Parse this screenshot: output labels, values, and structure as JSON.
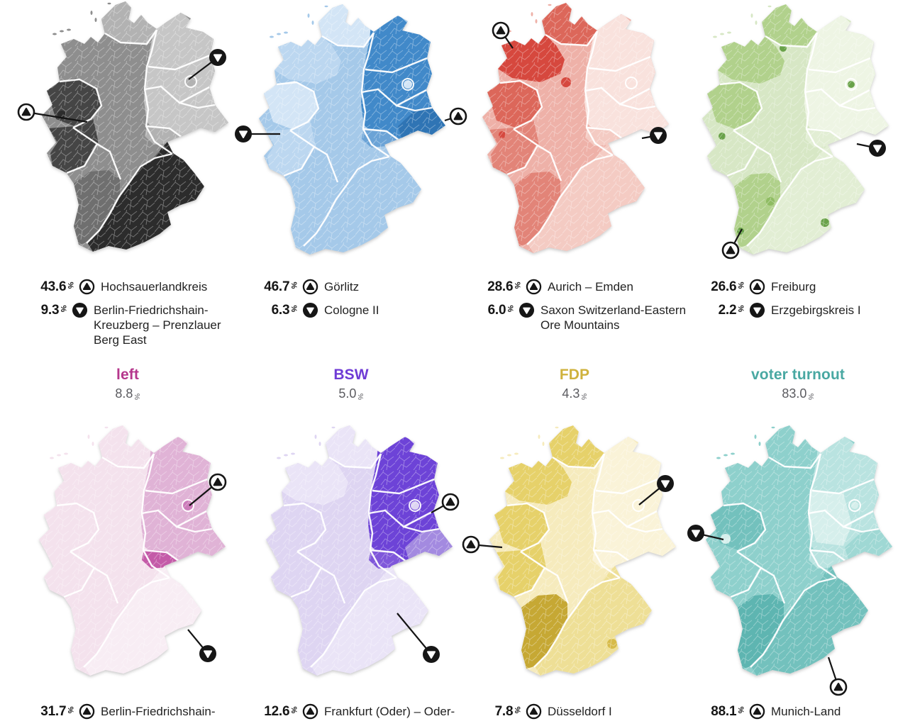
{
  "page": {
    "background": "#ffffff"
  },
  "unit": "%",
  "legend_icons": {
    "max": "triangle-up-in-circle",
    "min": "triangle-down-in-circle"
  },
  "chart_data": {
    "type": "heatmap",
    "subtype": "choropleth-small-multiples",
    "region": "Germany constituencies",
    "maps": [
      {
        "series": "map-grey",
        "max": {
          "value": 43.6,
          "district": "Hochsauerlandkreis"
        },
        "min": {
          "value": 9.3,
          "district": "Berlin-Friedrichshain-Kreuzberg – Prenzlauer Berg East"
        }
      },
      {
        "series": "map-blue",
        "max": {
          "value": 46.7,
          "district": "Görlitz"
        },
        "min": {
          "value": 6.3,
          "district": "Cologne II"
        }
      },
      {
        "series": "map-red",
        "max": {
          "value": 28.6,
          "district": "Aurich – Emden"
        },
        "min": {
          "value": 6.0,
          "district": "Saxon Switzerland-Eastern Ore Mountains"
        }
      },
      {
        "series": "map-green",
        "max": {
          "value": 26.6,
          "district": "Freiburg"
        },
        "min": {
          "value": 2.2,
          "district": "Erzgebirgskreis I"
        }
      },
      {
        "series": "left",
        "total": 8.8,
        "max": {
          "value": 31.7,
          "district": "Berlin-Friedrichshain-"
        }
      },
      {
        "series": "BSW",
        "total": 5.0,
        "max": {
          "value": 12.6,
          "district": "Frankfurt (Oder) – Oder-"
        }
      },
      {
        "series": "FDP",
        "total": 4.3,
        "max": {
          "value": 7.8,
          "district": "Düsseldorf I"
        }
      },
      {
        "series": "voter turnout",
        "total": 83.0,
        "max": {
          "value": 88.1,
          "district": "Munich-Land"
        }
      }
    ]
  },
  "maps": [
    {
      "name": "map-grey",
      "palette": [
        "#c6c6c6",
        "#b2b2b2",
        "#8e8e8e",
        "#6f6f6f",
        "#454545",
        "#2c2c2c"
      ],
      "max": {
        "value": "43.6",
        "district": "Hochsauerlandkreis"
      },
      "min": {
        "value": "9.3",
        "district": "Berlin-Friedrichshain-Kreuzberg – Prenzlauer Berg East"
      }
    },
    {
      "name": "map-blue",
      "palette": [
        "#d3e5f6",
        "#bcd7f0",
        "#a5c9e9",
        "#6ba3d6",
        "#4189c9",
        "#2f74b4"
      ],
      "max": {
        "value": "46.7",
        "district": "Görlitz"
      },
      "min": {
        "value": "6.3",
        "district": "Cologne II"
      }
    },
    {
      "name": "map-red",
      "palette": [
        "#f9e2dd",
        "#f4cbc3",
        "#eeb1a8",
        "#e28478",
        "#dc675a",
        "#d6483e"
      ],
      "max": {
        "value": "28.6",
        "district": "Aurich – Emden"
      },
      "min": {
        "value": "6.0",
        "district": "Saxon Switzerland-Eastern Ore Mountains"
      }
    },
    {
      "name": "map-green",
      "palette": [
        "#eef5e4",
        "#e2eed4",
        "#d7e7c5",
        "#b1d18c",
        "#8fbc63",
        "#69a249"
      ],
      "max": {
        "value": "26.6",
        "district": "Freiburg"
      },
      "min": {
        "value": "2.2",
        "district": "Erzgebirgskreis I"
      }
    },
    {
      "name": "map-pink",
      "palette": [
        "#f8edf4",
        "#f4e2ed",
        "#eccade",
        "#e0b3d6",
        "#cc7cba",
        "#c45ba8"
      ],
      "title": {
        "label": "left",
        "value": "8.8",
        "color": "#b5368c"
      },
      "max": {
        "value": "31.7",
        "district": "Berlin-Friedrichshain-"
      }
    },
    {
      "name": "map-purple",
      "palette": [
        "#eae4f7",
        "#ded5f2",
        "#c9bced",
        "#a38ae0",
        "#7f57da",
        "#6d43d7"
      ],
      "title": {
        "label": "BSW",
        "value": "5.0",
        "color": "#6f3bd5"
      },
      "max": {
        "value": "12.6",
        "district": "Frankfurt (Oder) – Oder-"
      }
    },
    {
      "name": "map-yellow",
      "palette": [
        "#faf3d8",
        "#f6ebbd",
        "#eedf96",
        "#e6d16a",
        "#d7bb49",
        "#c6a834"
      ],
      "title": {
        "label": "FDP",
        "value": "4.3",
        "color": "#cfb23d"
      },
      "max": {
        "value": "7.8",
        "district": "Düsseldorf I"
      }
    },
    {
      "name": "map-teal",
      "palette": [
        "#d6efec",
        "#b9e3e0",
        "#9fd8d4",
        "#8ed0cc",
        "#73c1bd",
        "#5eb5b1"
      ],
      "title": {
        "label": "voter turnout",
        "value": "83.0",
        "color": "#49a8a2"
      },
      "max": {
        "value": "88.1",
        "district": "Munich-Land"
      }
    }
  ]
}
